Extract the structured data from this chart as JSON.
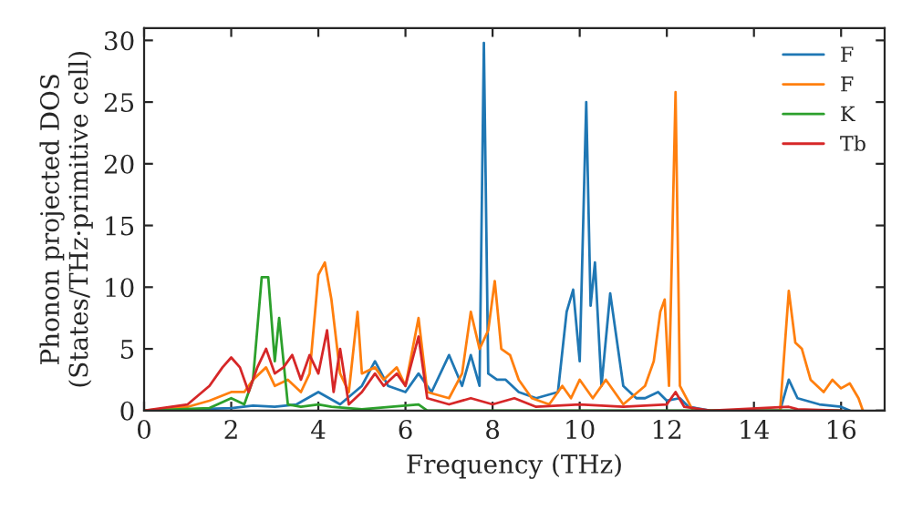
{
  "chart_data": {
    "type": "line",
    "xlabel": "Frequency (THz)",
    "ylabel": "Phonon projected DOS\n(States/THz·primitive cell)",
    "xlim": [
      0,
      17
    ],
    "ylim": [
      0,
      31
    ],
    "xticks": [
      0,
      2,
      4,
      6,
      8,
      10,
      12,
      14,
      16
    ],
    "yticks": [
      0,
      5,
      10,
      15,
      20,
      25,
      30
    ],
    "grid": false,
    "legend": "top right",
    "marker": "none",
    "line_style": "solid",
    "series": [
      {
        "name": "F",
        "color": "#1f77b4",
        "x": [
          0,
          2,
          2.5,
          3,
          3.5,
          4,
          4.5,
          5,
          5.3,
          5.6,
          6,
          6.3,
          6.6,
          7,
          7.3,
          7.5,
          7.7,
          7.8,
          7.9,
          8.1,
          8.3,
          8.6,
          9,
          9.5,
          9.7,
          9.85,
          10,
          10.15,
          10.25,
          10.35,
          10.5,
          10.7,
          11,
          11.3,
          11.5,
          11.8,
          12,
          12.3,
          12.5,
          13,
          14.6,
          14.8,
          15,
          15.5,
          16,
          16.2
        ],
        "values": [
          0,
          0.2,
          0.4,
          0.3,
          0.5,
          1.5,
          0.5,
          2,
          4,
          2,
          1.5,
          3,
          1.5,
          4.5,
          2,
          4.5,
          2,
          29.8,
          3,
          2.5,
          2.5,
          1.5,
          1,
          1.5,
          8,
          9.8,
          4,
          25,
          8.5,
          12,
          2,
          9.5,
          2,
          1,
          1,
          1.5,
          0.8,
          1,
          0.3,
          0,
          0,
          2.5,
          1,
          0.5,
          0.3,
          0
        ]
      },
      {
        "name": "F",
        "color": "#ff7f0e",
        "x": [
          0,
          1,
          1.5,
          2,
          2.3,
          2.5,
          2.8,
          3,
          3.3,
          3.6,
          3.8,
          4,
          4.15,
          4.3,
          4.5,
          4.7,
          4.9,
          5,
          5.3,
          5.5,
          5.8,
          6,
          6.3,
          6.5,
          7,
          7.3,
          7.5,
          7.7,
          7.9,
          8.05,
          8.2,
          8.4,
          8.6,
          8.9,
          9.3,
          9.6,
          9.8,
          10,
          10.3,
          10.6,
          11,
          11.5,
          11.7,
          11.85,
          11.95,
          12.05,
          12.2,
          12.3,
          12.6,
          14.6,
          14.8,
          14.95,
          15.1,
          15.3,
          15.6,
          15.8,
          16,
          16.2,
          16.4,
          16.5
        ],
        "values": [
          0,
          0.3,
          0.8,
          1.5,
          1.5,
          2.5,
          3.5,
          2,
          2.5,
          1.5,
          3,
          11,
          12,
          9,
          3,
          1.5,
          8,
          3,
          3.5,
          2.5,
          3.5,
          2,
          7.5,
          1.5,
          1,
          3,
          8,
          5,
          6.5,
          10.5,
          5,
          4.5,
          2.5,
          1,
          0.5,
          2,
          1,
          2.5,
          1,
          2.5,
          0.5,
          2,
          4,
          8,
          9,
          2,
          25.8,
          2,
          0,
          0,
          9.7,
          5.5,
          5,
          2.5,
          1.5,
          2.5,
          1.8,
          2.2,
          1,
          0
        ]
      },
      {
        "name": "K",
        "color": "#2ca02c",
        "x": [
          0,
          1.5,
          2,
          2.3,
          2.5,
          2.7,
          2.85,
          3,
          3.1,
          3.3,
          3.6,
          4,
          4.3,
          5,
          6.3,
          6.5,
          16
        ],
        "values": [
          0,
          0.2,
          1,
          0.5,
          2.5,
          10.8,
          10.8,
          4,
          7.5,
          0.5,
          0.3,
          0.5,
          0.3,
          0.1,
          0.5,
          0,
          0
        ]
      },
      {
        "name": "Tb",
        "color": "#d62728",
        "x": [
          0,
          1,
          1.5,
          1.8,
          2,
          2.2,
          2.4,
          2.6,
          2.8,
          3,
          3.2,
          3.4,
          3.6,
          3.8,
          4,
          4.2,
          4.35,
          4.5,
          4.7,
          5,
          5.3,
          5.5,
          5.8,
          6,
          6.3,
          6.5,
          7,
          7.5,
          8,
          8.5,
          9,
          10,
          11,
          12,
          12.2,
          12.4,
          13,
          14.8,
          15,
          16
        ],
        "values": [
          0,
          0.5,
          2,
          3.5,
          4.3,
          3.5,
          1.5,
          3.5,
          5,
          3,
          3.5,
          4.5,
          2.5,
          4.5,
          3,
          6.5,
          1.5,
          5,
          0.5,
          1.5,
          3,
          2,
          3,
          2,
          6,
          1,
          0.5,
          1,
          0.5,
          1,
          0.3,
          0.5,
          0.3,
          0.5,
          1.5,
          0.3,
          0,
          0.3,
          0.1,
          0
        ]
      }
    ]
  }
}
